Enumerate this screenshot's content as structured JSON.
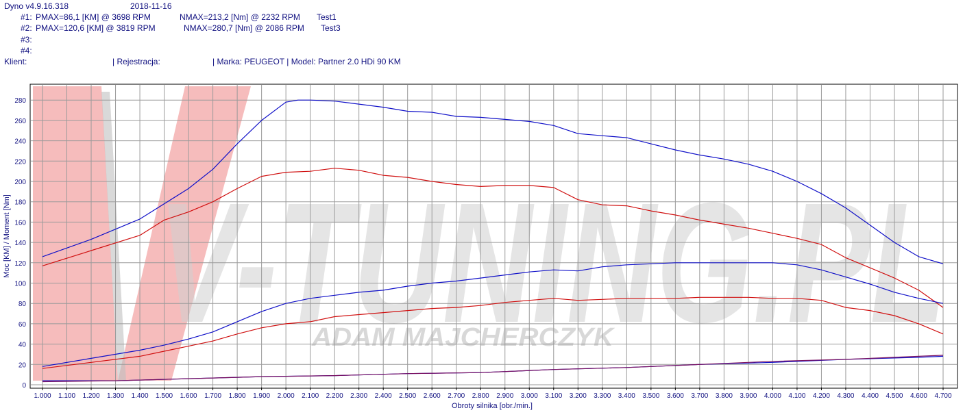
{
  "header": {
    "app_version": "Dyno v4.9.16.318",
    "date": "2018-11-16",
    "runs": [
      {
        "slot": "#1:",
        "pmax": "PMAX=86,1 [KM] @ 3698 RPM",
        "nmax": "NMAX=213,2 [Nm] @ 2232 RPM",
        "name": "Test1"
      },
      {
        "slot": "#2:",
        "pmax": "PMAX=120,6 [KM] @ 3819 RPM",
        "nmax": "NMAX=280,7 [Nm] @ 2086 RPM",
        "name": "Test3"
      },
      {
        "slot": "#3:",
        "pmax": "",
        "nmax": "",
        "name": ""
      },
      {
        "slot": "#4:",
        "pmax": "",
        "nmax": "",
        "name": ""
      }
    ],
    "client_label": "Klient:",
    "registration_label": "| Rejestracja:",
    "make_model": "| Marka: PEUGEOT | Model: Partner 2.0 HDi 90 KM"
  },
  "watermark": {
    "brand": "V-TUNING.PL",
    "owner": "ADAM MAJCHERCZYK"
  },
  "colors": {
    "axis_text": "#101080",
    "grid": "#9a9a9a",
    "red_series": "#d01010",
    "blue_series": "#1010c8",
    "watermark": "#d0d0d0",
    "watermark_red": "#f3a6a6"
  },
  "chart_data": {
    "type": "line",
    "xlabel": "Obroty silnika [obr./min.]",
    "ylabel": "Moc [KM] / Moment [Nm]",
    "xlim": [
      1.0,
      4.7
    ],
    "ylim": [
      0,
      290
    ],
    "x_ticks": [
      "1.000",
      "1.100",
      "1.200",
      "1.300",
      "1.400",
      "1.500",
      "1.600",
      "1.700",
      "1.800",
      "1.900",
      "2.000",
      "2.100",
      "2.200",
      "2.300",
      "2.400",
      "2.500",
      "2.600",
      "2.700",
      "2.800",
      "2.900",
      "3.000",
      "3.100",
      "3.200",
      "3.300",
      "3.400",
      "3.500",
      "3.600",
      "3.700",
      "3.800",
      "3.900",
      "4.000",
      "4.100",
      "4.200",
      "4.300",
      "4.400",
      "4.500",
      "4.600",
      "4.700"
    ],
    "y_ticks": [
      "0",
      "20",
      "40",
      "60",
      "80",
      "100",
      "120",
      "140",
      "160",
      "180",
      "200",
      "220",
      "240",
      "260",
      "280"
    ],
    "grid": true,
    "series": [
      {
        "color": "#1010c8",
        "x": [
          1.0,
          1.2,
          1.4,
          1.6,
          1.7,
          1.8,
          1.9,
          2.0,
          2.05,
          2.1,
          2.2,
          2.3,
          2.4,
          2.5,
          2.6,
          2.7,
          2.8,
          2.9,
          3.0,
          3.1,
          3.2,
          3.3,
          3.4,
          3.5,
          3.6,
          3.7,
          3.8,
          3.9,
          4.0,
          4.1,
          4.2,
          4.3,
          4.4,
          4.5,
          4.6,
          4.7
        ],
        "y": [
          126,
          143,
          163,
          193,
          212,
          237,
          260,
          278,
          280,
          280,
          279,
          276,
          273,
          269,
          268,
          264,
          263,
          261,
          259,
          255,
          247,
          245,
          243,
          237,
          231,
          226,
          222,
          217,
          210,
          200,
          188,
          174,
          157,
          140,
          126,
          119
        ]
      },
      {
        "color": "#d01010",
        "x": [
          1.0,
          1.2,
          1.4,
          1.5,
          1.6,
          1.7,
          1.8,
          1.9,
          2.0,
          2.1,
          2.2,
          2.3,
          2.4,
          2.5,
          2.6,
          2.7,
          2.8,
          2.9,
          3.0,
          3.1,
          3.2,
          3.3,
          3.4,
          3.5,
          3.6,
          3.7,
          3.8,
          3.9,
          4.0,
          4.1,
          4.2,
          4.3,
          4.4,
          4.5,
          4.6,
          4.7
        ],
        "y": [
          117,
          132,
          147,
          162,
          170,
          180,
          193,
          205,
          209,
          210,
          213,
          211,
          206,
          204,
          200,
          197,
          195,
          196,
          196,
          194,
          182,
          177,
          176,
          171,
          167,
          162,
          158,
          154,
          149,
          144,
          138,
          125,
          115,
          105,
          93,
          76
        ]
      },
      {
        "color": "#1010c8",
        "x": [
          1.0,
          1.2,
          1.4,
          1.5,
          1.6,
          1.7,
          1.8,
          1.9,
          2.0,
          2.1,
          2.2,
          2.3,
          2.4,
          2.5,
          2.6,
          2.7,
          2.8,
          2.9,
          3.0,
          3.1,
          3.2,
          3.3,
          3.4,
          3.5,
          3.6,
          3.7,
          3.8,
          3.9,
          4.0,
          4.1,
          4.2,
          4.3,
          4.4,
          4.5,
          4.6,
          4.7
        ],
        "y": [
          18,
          26,
          34,
          39,
          45,
          52,
          62,
          72,
          80,
          85,
          88,
          91,
          93,
          97,
          100,
          102,
          105,
          108,
          111,
          113,
          112,
          116,
          118,
          119,
          120,
          120,
          120,
          120,
          120,
          118,
          113,
          106,
          99,
          91,
          85,
          80
        ]
      },
      {
        "color": "#d01010",
        "x": [
          1.0,
          1.2,
          1.4,
          1.5,
          1.6,
          1.7,
          1.8,
          1.9,
          2.0,
          2.1,
          2.2,
          2.3,
          2.4,
          2.5,
          2.6,
          2.7,
          2.8,
          2.9,
          3.0,
          3.1,
          3.2,
          3.3,
          3.4,
          3.5,
          3.6,
          3.7,
          3.8,
          3.9,
          4.0,
          4.1,
          4.2,
          4.3,
          4.4,
          4.5,
          4.6,
          4.7
        ],
        "y": [
          16,
          22,
          28,
          33,
          38,
          43,
          50,
          56,
          60,
          62,
          67,
          69,
          71,
          73,
          75,
          76,
          78,
          81,
          83,
          85,
          83,
          84,
          85,
          85,
          85,
          86,
          86,
          86,
          85,
          85,
          83,
          76,
          73,
          68,
          60,
          50
        ]
      },
      {
        "color": "#1010c8",
        "x": [
          1.0,
          1.3,
          1.6,
          1.9,
          2.2,
          2.5,
          2.8,
          3.1,
          3.4,
          3.7,
          4.0,
          4.3,
          4.6,
          4.7
        ],
        "y": [
          4,
          4,
          6,
          8,
          9,
          11,
          12,
          15,
          17,
          20,
          22,
          25,
          27,
          28
        ]
      },
      {
        "color": "#7a1060",
        "x": [
          1.0,
          1.3,
          1.6,
          1.9,
          2.2,
          2.5,
          2.8,
          3.1,
          3.4,
          3.7,
          4.0,
          4.3,
          4.6,
          4.7
        ],
        "y": [
          3,
          4,
          6,
          8,
          9,
          11,
          12,
          15,
          17,
          20,
          23,
          25,
          28,
          29
        ]
      }
    ]
  }
}
